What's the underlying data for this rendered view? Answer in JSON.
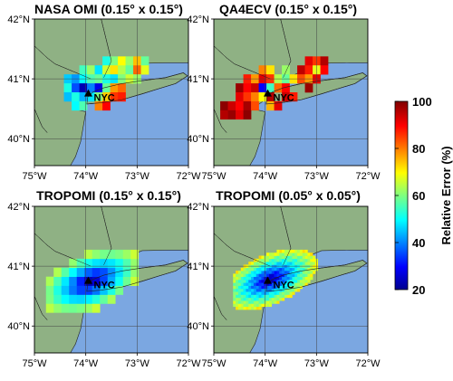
{
  "colors": {
    "land": "#8fb184",
    "ocean": "#7ba7e1",
    "coast": "#222222",
    "grid": "#444444",
    "background": "#ffffff"
  },
  "axes": {
    "lon_ticks": [
      "75°W",
      "74°W",
      "73°W",
      "72°W"
    ],
    "lat_ticks": [
      "42°N",
      "41°N",
      "40°N"
    ]
  },
  "panels": [
    {
      "title": "NASA OMI (0.15° x 0.15°)",
      "city_label": "NYC",
      "resolution_deg": 0.15,
      "cells": [
        {
          "lon": -73.6,
          "lat": 41.3,
          "error": 52
        },
        {
          "lon": -73.45,
          "lat": 41.3,
          "error": 60
        },
        {
          "lon": -73.3,
          "lat": 41.3,
          "error": 70
        },
        {
          "lon": -73.15,
          "lat": 41.3,
          "error": 62
        },
        {
          "lon": -73.0,
          "lat": 41.3,
          "error": 75
        },
        {
          "lon": -72.85,
          "lat": 41.3,
          "error": 58
        },
        {
          "lon": -74.05,
          "lat": 41.15,
          "error": 55
        },
        {
          "lon": -73.9,
          "lat": 41.15,
          "error": 62
        },
        {
          "lon": -73.75,
          "lat": 41.15,
          "error": 48
        },
        {
          "lon": -73.6,
          "lat": 41.15,
          "error": 66
        },
        {
          "lon": -73.45,
          "lat": 41.15,
          "error": 72
        },
        {
          "lon": -73.3,
          "lat": 41.15,
          "error": 64
        },
        {
          "lon": -73.15,
          "lat": 41.15,
          "error": 58
        },
        {
          "lon": -73.0,
          "lat": 41.15,
          "error": 82
        },
        {
          "lon": -72.85,
          "lat": 41.15,
          "error": 68
        },
        {
          "lon": -74.35,
          "lat": 41.0,
          "error": 46
        },
        {
          "lon": -74.2,
          "lat": 41.0,
          "error": 42
        },
        {
          "lon": -74.05,
          "lat": 41.0,
          "error": 50
        },
        {
          "lon": -73.9,
          "lat": 41.0,
          "error": 56
        },
        {
          "lon": -73.75,
          "lat": 41.0,
          "error": 58
        },
        {
          "lon": -73.6,
          "lat": 41.0,
          "error": 52
        },
        {
          "lon": -73.45,
          "lat": 41.0,
          "error": 48
        },
        {
          "lon": -73.3,
          "lat": 41.0,
          "error": 60
        },
        {
          "lon": -73.15,
          "lat": 41.0,
          "error": 66
        },
        {
          "lon": -73.0,
          "lat": 41.0,
          "error": 62
        },
        {
          "lon": -74.35,
          "lat": 40.85,
          "error": 52
        },
        {
          "lon": -74.2,
          "lat": 40.85,
          "error": 36
        },
        {
          "lon": -74.05,
          "lat": 40.85,
          "error": 24
        },
        {
          "lon": -73.9,
          "lat": 40.85,
          "error": 40
        },
        {
          "lon": -73.75,
          "lat": 40.85,
          "error": 28
        },
        {
          "lon": -73.6,
          "lat": 40.85,
          "error": 58
        },
        {
          "lon": -73.45,
          "lat": 40.85,
          "error": 78
        },
        {
          "lon": -73.3,
          "lat": 40.85,
          "error": 82
        },
        {
          "lon": -74.35,
          "lat": 40.7,
          "error": 45
        },
        {
          "lon": -74.2,
          "lat": 40.7,
          "error": 52
        },
        {
          "lon": -74.05,
          "lat": 40.7,
          "error": 44
        },
        {
          "lon": -73.9,
          "lat": 40.7,
          "error": 48
        },
        {
          "lon": -73.75,
          "lat": 40.7,
          "error": 60
        },
        {
          "lon": -73.6,
          "lat": 40.7,
          "error": 74
        },
        {
          "lon": -73.45,
          "lat": 40.7,
          "error": 86
        },
        {
          "lon": -73.3,
          "lat": 40.7,
          "error": 88
        },
        {
          "lon": -74.2,
          "lat": 40.55,
          "error": 50
        },
        {
          "lon": -74.05,
          "lat": 40.55,
          "error": 56
        },
        {
          "lon": -73.75,
          "lat": 40.55,
          "error": 80
        },
        {
          "lon": -73.6,
          "lat": 40.55,
          "error": 90
        }
      ]
    },
    {
      "title": "QA4ECV (0.15° x 0.15°)",
      "city_label": "NYC",
      "resolution_deg": 0.15,
      "cells": [
        {
          "lon": -73.15,
          "lat": 41.3,
          "error": 92
        },
        {
          "lon": -73.0,
          "lat": 41.3,
          "error": 86
        },
        {
          "lon": -72.85,
          "lat": 41.3,
          "error": 96
        },
        {
          "lon": -74.05,
          "lat": 41.15,
          "error": 80
        },
        {
          "lon": -73.9,
          "lat": 41.15,
          "error": 72
        },
        {
          "lon": -73.6,
          "lat": 41.15,
          "error": 62
        },
        {
          "lon": -73.3,
          "lat": 41.15,
          "error": 95
        },
        {
          "lon": -73.15,
          "lat": 41.15,
          "error": 88
        },
        {
          "lon": -73.0,
          "lat": 41.15,
          "error": 68
        },
        {
          "lon": -72.85,
          "lat": 41.15,
          "error": 90
        },
        {
          "lon": -74.35,
          "lat": 41.0,
          "error": 88
        },
        {
          "lon": -74.2,
          "lat": 41.0,
          "error": 78
        },
        {
          "lon": -74.05,
          "lat": 41.0,
          "error": 92
        },
        {
          "lon": -73.9,
          "lat": 41.0,
          "error": 86
        },
        {
          "lon": -73.75,
          "lat": 41.0,
          "error": 64
        },
        {
          "lon": -73.6,
          "lat": 41.0,
          "error": 58
        },
        {
          "lon": -73.45,
          "lat": 41.0,
          "error": 72
        },
        {
          "lon": -73.3,
          "lat": 41.0,
          "error": 84
        },
        {
          "lon": -73.15,
          "lat": 41.0,
          "error": 78
        },
        {
          "lon": -73.0,
          "lat": 41.0,
          "error": 92
        },
        {
          "lon": -74.5,
          "lat": 40.85,
          "error": 98
        },
        {
          "lon": -74.35,
          "lat": 40.85,
          "error": 90
        },
        {
          "lon": -74.2,
          "lat": 40.85,
          "error": 94
        },
        {
          "lon": -74.05,
          "lat": 40.85,
          "error": 30
        },
        {
          "lon": -73.9,
          "lat": 40.85,
          "error": 55
        },
        {
          "lon": -73.75,
          "lat": 40.85,
          "error": 82
        },
        {
          "lon": -73.6,
          "lat": 40.85,
          "error": 90
        },
        {
          "lon": -73.15,
          "lat": 40.85,
          "error": 98
        },
        {
          "lon": -74.5,
          "lat": 40.7,
          "error": 92
        },
        {
          "lon": -74.35,
          "lat": 40.7,
          "error": 86
        },
        {
          "lon": -74.2,
          "lat": 40.7,
          "error": 80
        },
        {
          "lon": -74.05,
          "lat": 40.7,
          "error": 70
        },
        {
          "lon": -73.9,
          "lat": 40.7,
          "error": 96
        },
        {
          "lon": -73.6,
          "lat": 40.7,
          "error": 94
        },
        {
          "lon": -73.45,
          "lat": 40.7,
          "error": 88
        },
        {
          "lon": -74.8,
          "lat": 40.55,
          "error": 99
        },
        {
          "lon": -74.65,
          "lat": 40.55,
          "error": 94
        },
        {
          "lon": -74.5,
          "lat": 40.55,
          "error": 90
        },
        {
          "lon": -74.35,
          "lat": 40.55,
          "error": 97
        },
        {
          "lon": -74.2,
          "lat": 40.55,
          "error": 84
        },
        {
          "lon": -73.9,
          "lat": 40.55,
          "error": 76
        },
        {
          "lon": -73.75,
          "lat": 40.55,
          "error": 92
        },
        {
          "lon": -74.8,
          "lat": 40.4,
          "error": 96
        },
        {
          "lon": -74.65,
          "lat": 40.4,
          "error": 98
        },
        {
          "lon": -74.5,
          "lat": 40.4,
          "error": 92
        },
        {
          "lon": -74.35,
          "lat": 40.4,
          "error": 99
        }
      ]
    },
    {
      "title": "TROPOMI (0.15° x 0.15°)",
      "city_label": "NYC",
      "resolution_deg": 0.15,
      "field": {
        "center_lon": -73.9,
        "center_lat": 40.75,
        "min_error": 20,
        "max_error": 66,
        "radius_deg": 1.05,
        "axis_ratio": 0.55,
        "rotation_deg": 28,
        "lon_range": [
          -74.7,
          -72.55
        ],
        "lat_range": [
          40.15,
          41.45
        ]
      }
    },
    {
      "title": "TROPOMI (0.05° x 0.05°)",
      "city_label": "NYC",
      "resolution_deg": 0.05,
      "field": {
        "center_lon": -73.9,
        "center_lat": 40.78,
        "min_error": 20,
        "max_error": 70,
        "radius_deg": 1.0,
        "axis_ratio": 0.52,
        "rotation_deg": 28,
        "lon_range": [
          -74.6,
          -72.55
        ],
        "lat_range": [
          40.15,
          41.45
        ]
      }
    }
  ],
  "colorbar": {
    "label": "Relative Error (%)",
    "ticks": [
      "100",
      "80",
      "60",
      "40",
      "20"
    ],
    "range": [
      20,
      100
    ],
    "colormap": "jet"
  }
}
